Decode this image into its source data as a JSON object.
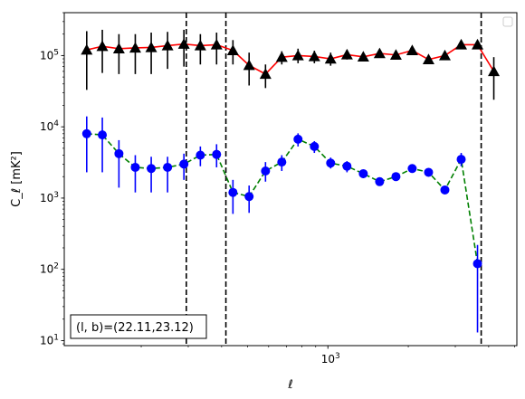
{
  "chart_data": {
    "type": "line",
    "xlabel": "ℓ",
    "ylabel": "C_ℓ  [mK²]",
    "xscale": "log",
    "yscale": "log",
    "xlim": [
      103,
      5100
    ],
    "ylim": [
      8.5,
      400000
    ],
    "x_tick_labels": [
      {
        "value": 1000,
        "base": "10",
        "exp": "3"
      }
    ],
    "y_tick_labels": [
      {
        "value": 10,
        "base": "10",
        "exp": "1"
      },
      {
        "value": 100,
        "base": "10",
        "exp": "2"
      },
      {
        "value": 1000,
        "base": "10",
        "exp": "3"
      },
      {
        "value": 10000,
        "base": "10",
        "exp": "4"
      },
      {
        "value": 100000,
        "base": "10",
        "exp": "5"
      }
    ],
    "vlines": [
      295,
      415,
      3750
    ],
    "legend_position": "top-right",
    "annotation": "(l, b)=(22.11,23.12)",
    "series": [
      {
        "color": "#000000",
        "line_color": "#ff0000",
        "line_style": "solid",
        "marker": "triangle",
        "points": [
          {
            "x": 125,
            "y": 120000,
            "lo": 33000,
            "hi": 220000
          },
          {
            "x": 143,
            "y": 135000,
            "lo": 57000,
            "hi": 230000
          },
          {
            "x": 165,
            "y": 125000,
            "lo": 55000,
            "hi": 200000
          },
          {
            "x": 190,
            "y": 128000,
            "lo": 55000,
            "hi": 200000
          },
          {
            "x": 218,
            "y": 130000,
            "lo": 55000,
            "hi": 210000
          },
          {
            "x": 251,
            "y": 138000,
            "lo": 65000,
            "hi": 215000
          },
          {
            "x": 289,
            "y": 145000,
            "lo": 70000,
            "hi": 230000
          },
          {
            "x": 333,
            "y": 138000,
            "lo": 75000,
            "hi": 200000
          },
          {
            "x": 383,
            "y": 142000,
            "lo": 75000,
            "hi": 210000
          },
          {
            "x": 441,
            "y": 118000,
            "lo": 75000,
            "hi": 165000
          },
          {
            "x": 507,
            "y": 73000,
            "lo": 38000,
            "hi": 110000
          },
          {
            "x": 584,
            "y": 55000,
            "lo": 35000,
            "hi": 75000
          },
          {
            "x": 672,
            "y": 95000,
            "lo": 75000,
            "hi": 115000
          },
          {
            "x": 773,
            "y": 100000,
            "lo": 78000,
            "hi": 125000
          },
          {
            "x": 890,
            "y": 97000,
            "lo": 78000,
            "hi": 117000
          },
          {
            "x": 1024,
            "y": 90000,
            "lo": 72000,
            "hi": 110000
          },
          {
            "x": 1179,
            "y": 103000,
            "lo": 88000,
            "hi": 120000
          },
          {
            "x": 1357,
            "y": 96000,
            "lo": 84000,
            "hi": 110000
          },
          {
            "x": 1562,
            "y": 107000,
            "lo": 95000,
            "hi": 120000
          },
          {
            "x": 1798,
            "y": 102000,
            "lo": 91000,
            "hi": 113000
          },
          {
            "x": 2069,
            "y": 118000,
            "lo": 108000,
            "hi": 130000
          },
          {
            "x": 2382,
            "y": 88000,
            "lo": 80000,
            "hi": 97000
          },
          {
            "x": 2742,
            "y": 100000,
            "lo": 90000,
            "hi": 110000
          },
          {
            "x": 3156,
            "y": 142000,
            "lo": 130000,
            "hi": 155000
          },
          {
            "x": 3633,
            "y": 142000,
            "lo": 130000,
            "hi": 155000
          },
          {
            "x": 4181,
            "y": 60000,
            "lo": 24000,
            "hi": 95000
          }
        ]
      },
      {
        "color": "#0000ff",
        "line_color": "#008000",
        "line_style": "dashed",
        "marker": "circle",
        "points": [
          {
            "x": 125,
            "y": 8000,
            "lo": 2300,
            "hi": 14000
          },
          {
            "x": 143,
            "y": 7700,
            "lo": 2300,
            "hi": 13500
          },
          {
            "x": 165,
            "y": 4200,
            "lo": 1400,
            "hi": 6500
          },
          {
            "x": 190,
            "y": 2700,
            "lo": 1200,
            "hi": 4000
          },
          {
            "x": 218,
            "y": 2600,
            "lo": 1200,
            "hi": 3800
          },
          {
            "x": 251,
            "y": 2700,
            "lo": 1200,
            "hi": 3800
          },
          {
            "x": 289,
            "y": 3000,
            "lo": 1800,
            "hi": 4200
          },
          {
            "x": 333,
            "y": 4000,
            "lo": 2800,
            "hi": 5300
          },
          {
            "x": 383,
            "y": 4100,
            "lo": 2700,
            "hi": 5700
          },
          {
            "x": 441,
            "y": 1200,
            "lo": 600,
            "hi": 1800
          },
          {
            "x": 507,
            "y": 1050,
            "lo": 620,
            "hi": 1500
          },
          {
            "x": 584,
            "y": 2400,
            "lo": 1700,
            "hi": 3200
          },
          {
            "x": 672,
            "y": 3200,
            "lo": 2400,
            "hi": 4000
          },
          {
            "x": 773,
            "y": 6700,
            "lo": 5300,
            "hi": 8100
          },
          {
            "x": 890,
            "y": 5300,
            "lo": 4300,
            "hi": 6300
          },
          {
            "x": 1024,
            "y": 3100,
            "lo": 2600,
            "hi": 3700
          },
          {
            "x": 1179,
            "y": 2800,
            "lo": 2300,
            "hi": 3300
          },
          {
            "x": 1357,
            "y": 2200,
            "lo": 1900,
            "hi": 2500
          },
          {
            "x": 1562,
            "y": 1700,
            "lo": 1500,
            "hi": 1900
          },
          {
            "x": 1798,
            "y": 2000,
            "lo": 1800,
            "hi": 2200
          },
          {
            "x": 2069,
            "y": 2600,
            "lo": 2400,
            "hi": 2800
          },
          {
            "x": 2382,
            "y": 2300,
            "lo": 2100,
            "hi": 2500
          },
          {
            "x": 2742,
            "y": 1300,
            "lo": 1150,
            "hi": 1450
          },
          {
            "x": 3156,
            "y": 3500,
            "lo": 2800,
            "hi": 4300
          },
          {
            "x": 3633,
            "y": 120,
            "lo": 13,
            "hi": 220
          }
        ]
      }
    ]
  }
}
